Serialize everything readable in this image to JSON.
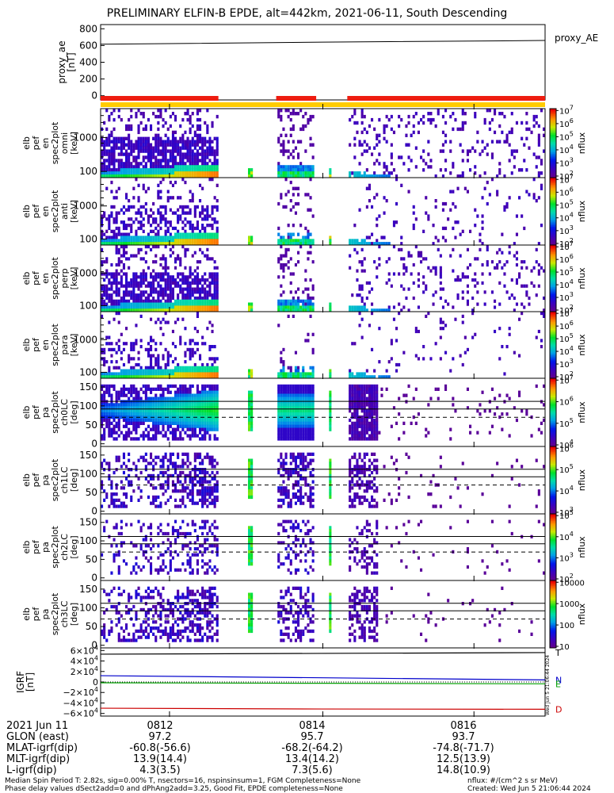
{
  "title": "PRELIMINARY ELFIN-B EPDE, alt=442km, 2021-06-11, South Descending",
  "chart_data": [
    {
      "type": "line",
      "panel": "proxy_ae",
      "ylabel": "proxy_ae\n[nT]",
      "ylim": [
        -50,
        850
      ],
      "yticks": [
        "0",
        "200",
        "400",
        "600",
        "800"
      ],
      "legend": "proxy_AE",
      "x": [
        0,
        0.5,
        1.0
      ],
      "values": [
        615,
        640,
        660
      ]
    },
    {
      "type": "heatmap",
      "panel": "omni",
      "ylabel": "elb\npef\nen\nspec2plot\nomni\n[keV]",
      "yticks": [
        "100",
        "1000"
      ],
      "zlabel": "nflux",
      "zticks": [
        "10^2",
        "10^3",
        "10^4",
        "10^5",
        "10^6",
        "10^7"
      ]
    },
    {
      "type": "heatmap",
      "panel": "anti",
      "ylabel": "elb\npef\nen\nspec2plot\nanti\n[keV]",
      "yticks": [
        "100",
        "1000"
      ],
      "zlabel": "nflux",
      "zticks": [
        "10^2",
        "10^3",
        "10^4",
        "10^5",
        "10^6",
        "10^7"
      ]
    },
    {
      "type": "heatmap",
      "panel": "perp",
      "ylabel": "elb\npef\nen\nspec2plot\nperp\n[keV]",
      "yticks": [
        "100",
        "1000"
      ],
      "zlabel": "nflux",
      "zticks": [
        "10^2",
        "10^3",
        "10^4",
        "10^5",
        "10^6",
        "10^7"
      ]
    },
    {
      "type": "heatmap",
      "panel": "para",
      "ylabel": "elb\npef\nen\nspec2plot\npara\n[keV]",
      "yticks": [
        "100",
        "1000"
      ],
      "zlabel": "nflux",
      "zticks": [
        "10^2",
        "10^3",
        "10^4",
        "10^5",
        "10^6",
        "10^7"
      ]
    },
    {
      "type": "heatmap",
      "panel": "ch0LC",
      "ylabel": "elb\npef\npa\nspec2plot\nch0LC\n[deg]",
      "yticks": [
        "0",
        "50",
        "100",
        "150"
      ],
      "zlabel": "nflux",
      "zticks": [
        "10^4",
        "10^5",
        "10^6",
        "10^7"
      ]
    },
    {
      "type": "heatmap",
      "panel": "ch1LC",
      "ylabel": "elb\npef\npa\nspec2plot\nch1LC\n[deg]",
      "yticks": [
        "0",
        "50",
        "100",
        "150"
      ],
      "zlabel": "nflux",
      "zticks": [
        "10^3",
        "10^4",
        "10^5",
        "10^6"
      ]
    },
    {
      "type": "heatmap",
      "panel": "ch2LC",
      "ylabel": "elb\npef\npa\nspec2plot\nch2LC\n[deg]",
      "yticks": [
        "0",
        "50",
        "100",
        "150"
      ],
      "zlabel": "nflux",
      "zticks": [
        "10^2",
        "10^3",
        "10^4",
        "10^5"
      ]
    },
    {
      "type": "heatmap",
      "panel": "ch3LC",
      "ylabel": "elb\npef\npa\nspec2plot\nch3LC\n[deg]",
      "yticks": [
        "0",
        "50",
        "100",
        "150"
      ],
      "zlabel": "nflux",
      "zticks": [
        "10",
        "100",
        "1000",
        "10000"
      ]
    },
    {
      "type": "line",
      "panel": "IGRF",
      "ylabel": "IGRF\n[nT]",
      "ylim": [
        -65000,
        65000
      ],
      "yticks": [
        "6×10^4",
        "4×10^4",
        "2×10^4",
        "0",
        "−2×10^4",
        "−4×10^4",
        "−6×10^4"
      ],
      "series": [
        {
          "name": "T",
          "color": "#000000",
          "values": [
            53000,
            54500,
            56000
          ]
        },
        {
          "name": "N",
          "color": "#0000cc",
          "values": [
            12000,
            8000,
            4000
          ]
        },
        {
          "name": "E",
          "color": "#00a000",
          "values": [
            -1500,
            -2500,
            -3500
          ]
        },
        {
          "name": "D",
          "color": "#cc0000",
          "values": [
            -50000,
            -51500,
            -52000
          ]
        }
      ]
    }
  ],
  "xaxis": {
    "date_label": "2021 Jun 11",
    "times": [
      "0812",
      "0814",
      "0816"
    ],
    "rows": [
      {
        "label": "GLON (east)",
        "values": [
          "97.2",
          "95.7",
          "93.7"
        ]
      },
      {
        "label": "MLAT-igrf(dip)",
        "values": [
          "-60.8(-56.6)",
          "-68.2(-64.2)",
          "-74.8(-71.7)"
        ]
      },
      {
        "label": "MLT-igrf(dip)",
        "values": [
          "13.9(14.4)",
          "13.4(14.2)",
          "12.5(13.9)"
        ]
      },
      {
        "label": "L-igrf(dip)",
        "values": [
          "4.3(3.5)",
          "7.3(5.6)",
          "14.8(10.9)"
        ]
      }
    ]
  },
  "footer": {
    "line1": "Median Spin Period T: 2.82s, sig=0.00% T, nsectors=16, nspinsinsum=1, FGM Completeness=None",
    "line2": "Phase delay values dSect2add=0 and dPhAng2add=3.25, Good Fit, EPDE completeness=None",
    "units": "nflux: #/(cm^2 s sr MeV)",
    "created": "Created: Wed Jun  5 21:06:44 2024",
    "stamp": "Wed Jun  5 21:06:44 2024"
  }
}
